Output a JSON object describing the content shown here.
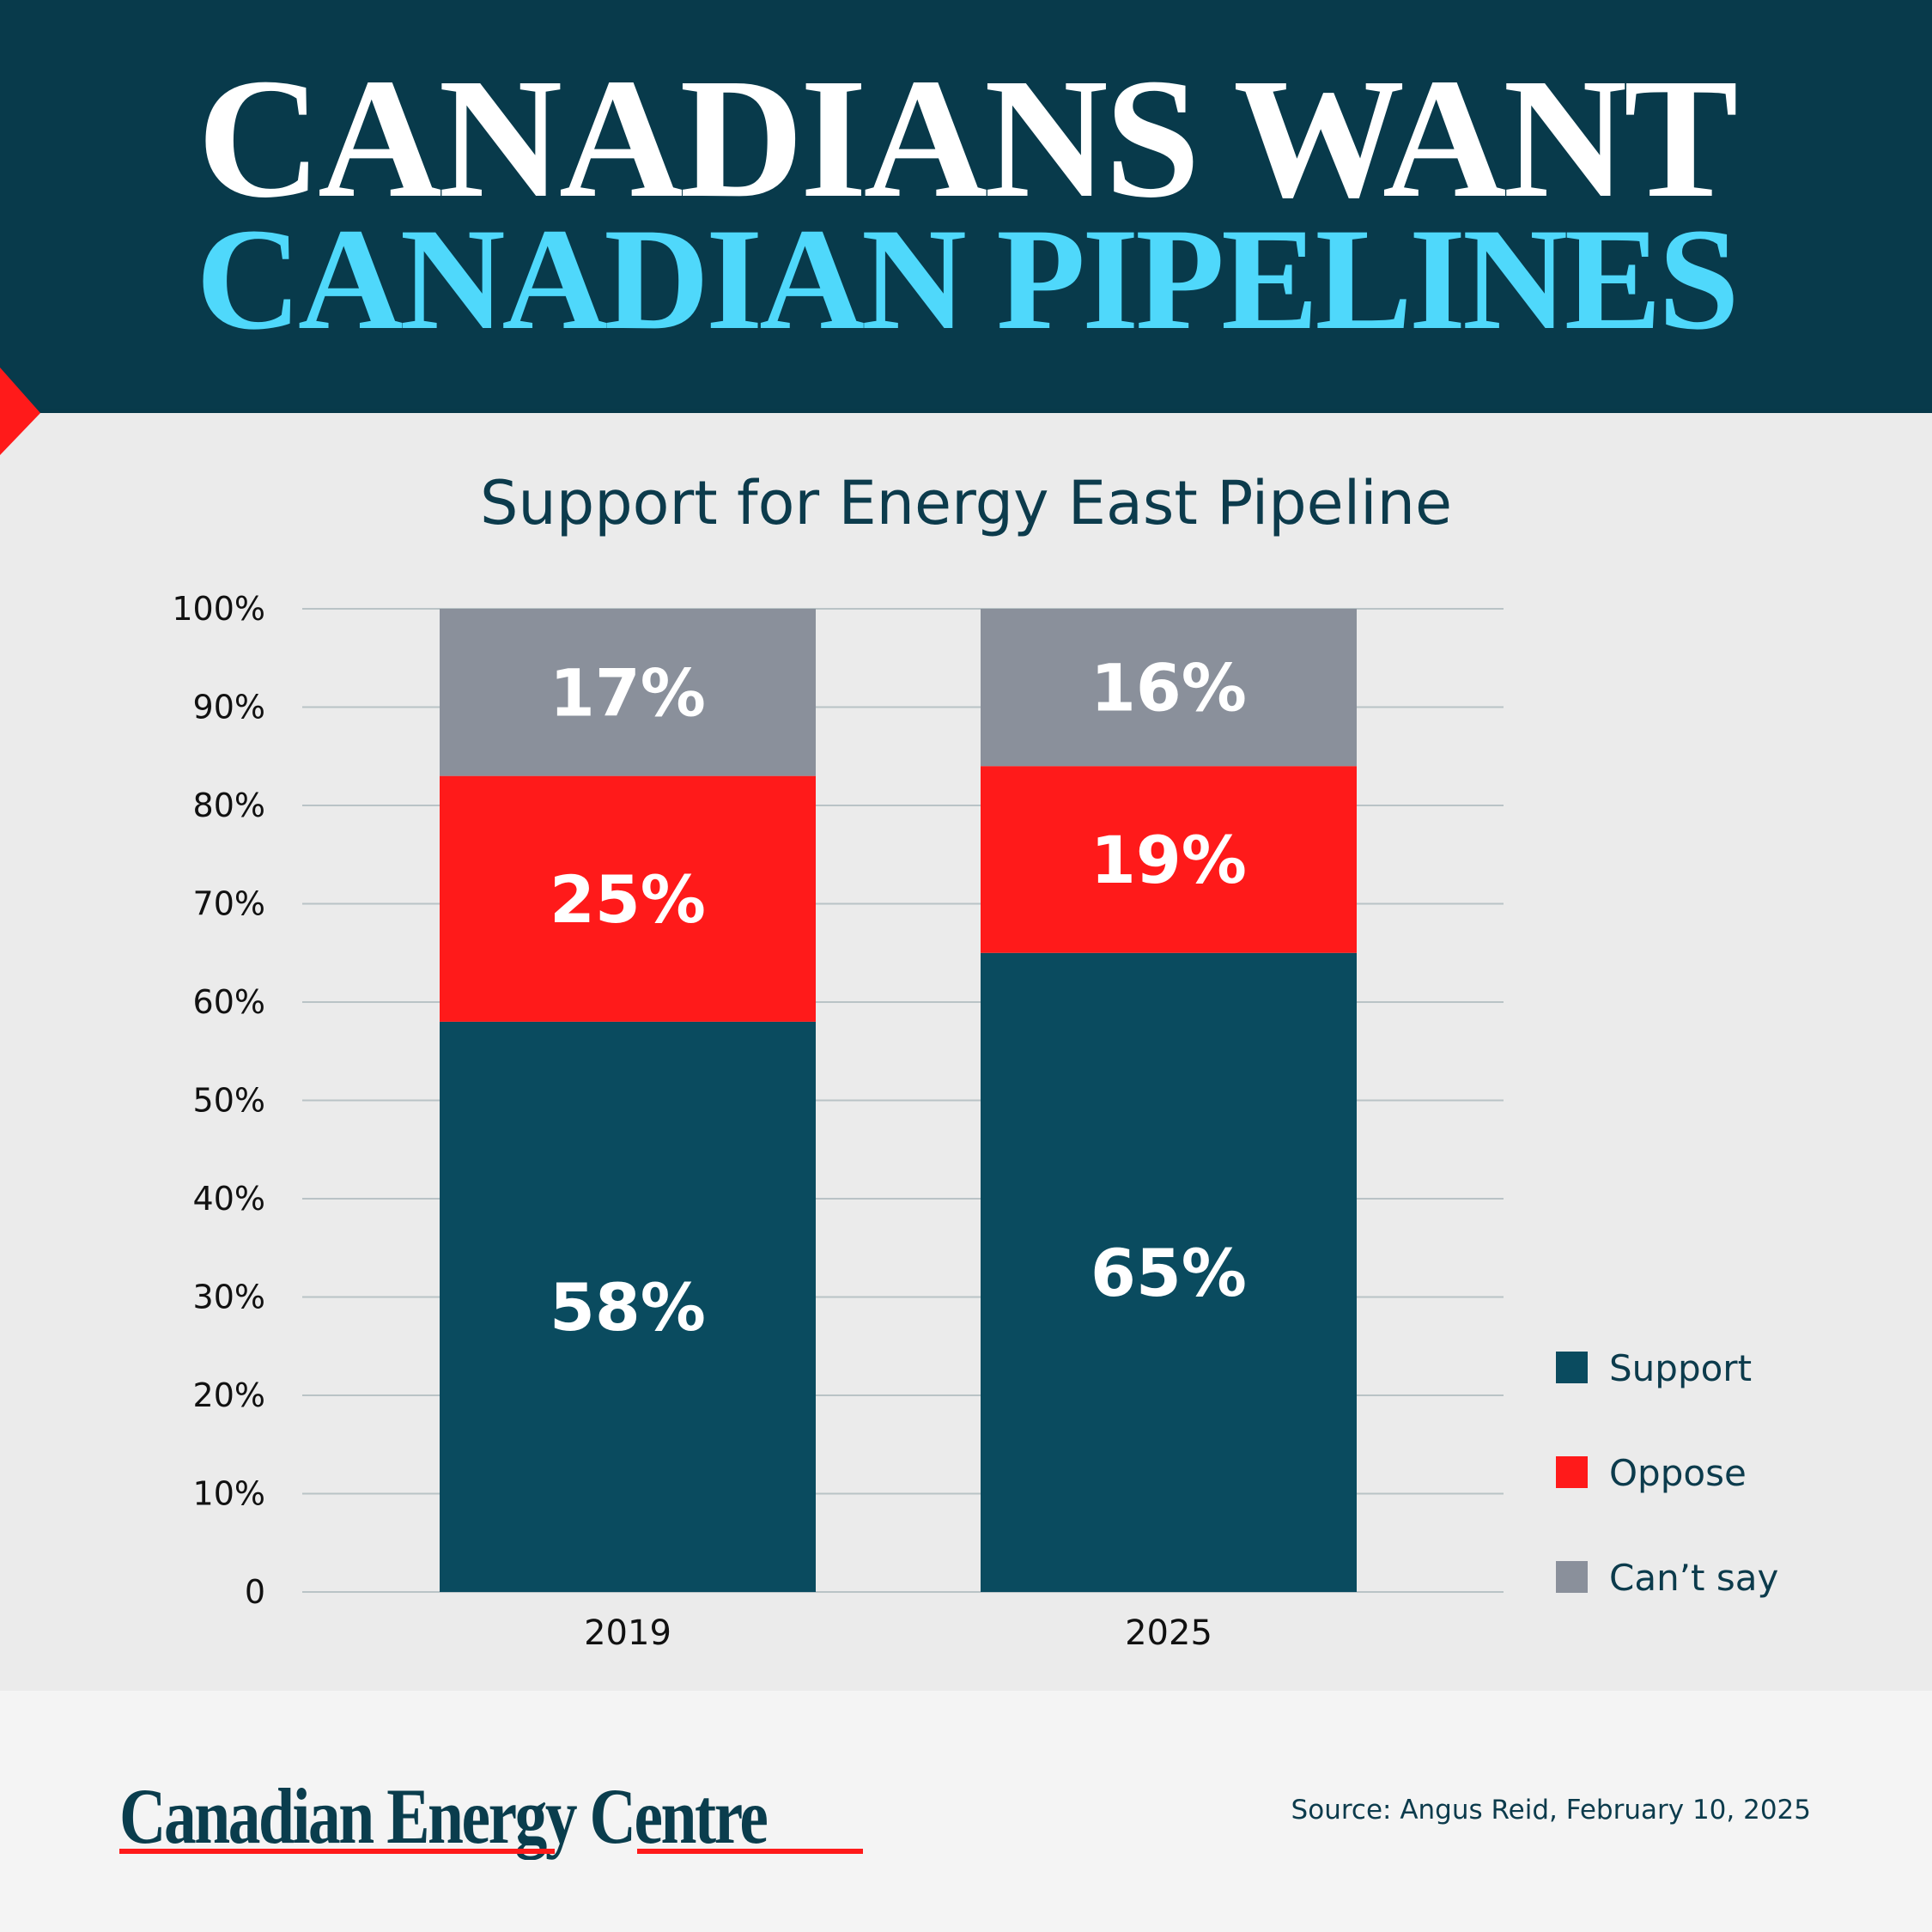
{
  "header": {
    "line1": "CANADIANS WANT",
    "line2": "CANADIAN PIPELINES"
  },
  "colors": {
    "header_bg": "#083a4b",
    "title_accent": "#4fd8fb",
    "support": "#0a4b5f",
    "oppose": "#ff1a1a",
    "cant_say": "#8a909b"
  },
  "chart_data": {
    "type": "bar",
    "stacked": true,
    "title": "Support for Energy East Pipeline",
    "categories": [
      "2019",
      "2025"
    ],
    "series": [
      {
        "name": "Support",
        "values": [
          58,
          65
        ],
        "labels": [
          "58%",
          "65%"
        ],
        "color": "#0a4b5f"
      },
      {
        "name": "Oppose",
        "values": [
          25,
          19
        ],
        "labels": [
          "25%",
          "19%"
        ],
        "color": "#ff1a1a"
      },
      {
        "name": "Can’t say",
        "values": [
          17,
          16
        ],
        "labels": [
          "17%",
          "16%"
        ],
        "color": "#8a909b"
      }
    ],
    "ylim": [
      0,
      100
    ],
    "yticks": [
      "0",
      "10%",
      "20%",
      "30%",
      "40%",
      "50%",
      "60%",
      "70%",
      "80%",
      "90%",
      "100%"
    ],
    "grid": true,
    "legend": "bottom-right"
  },
  "footer": {
    "logo": "Canadian Energy Centre",
    "source": "Source: Angus Reid, February 10, 2025"
  }
}
